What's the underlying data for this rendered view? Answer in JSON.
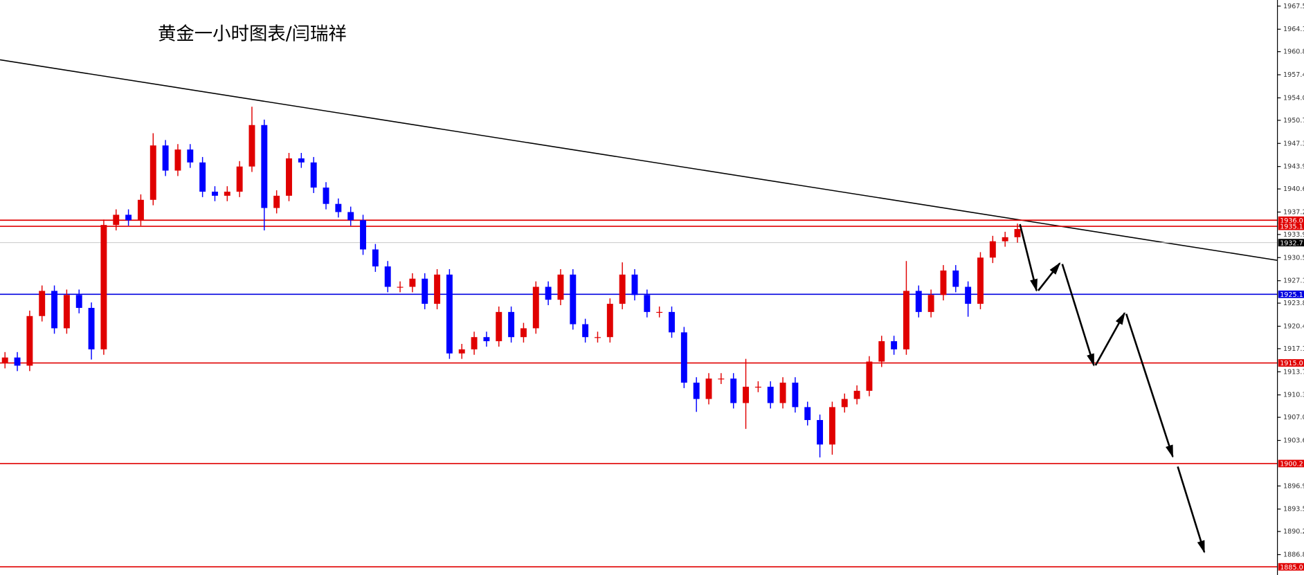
{
  "chart_data": {
    "type": "candlestick",
    "title": "黄金一小时图表/闫瑞祥",
    "up_color": "#e00000",
    "down_color": "#0000ff",
    "ylim": [
      1883.8,
      1968.4
    ],
    "yticks": [
      1967.5,
      1964.1,
      1960.8,
      1957.4,
      {
        "value": 1954.0,
        "label": "1954.0"
      },
      1950.7,
      1947.3,
      1943.9,
      1940.6,
      1937.2,
      1933.9,
      1930.5,
      1927.1,
      1923.8,
      1920.4,
      1917.1,
      1913.7,
      1910.3,
      {
        "value": 1907.0,
        "label": "1907.0"
      },
      1903.6,
      1896.9,
      1893.5,
      1890.2,
      1886.8
    ],
    "levels": [
      {
        "value": 1936.0,
        "label": "1936.0",
        "color": "#e00000"
      },
      {
        "value": 1935.1,
        "color": "#e00000"
      },
      {
        "value": 1932.7,
        "color": "#c0c0c0"
      },
      {
        "value": 1925.1,
        "color": "#0000e0"
      },
      {
        "value": 1915.0,
        "label": "1915.0",
        "color": "#e00000"
      },
      {
        "value": 1900.2,
        "color": "#e00000"
      },
      {
        "value": 1885.0,
        "label": "1885.0",
        "color": "#e00000"
      }
    ],
    "trendline": {
      "start": 1959.6,
      "end": 1930.1,
      "color": "#000000"
    },
    "candles": [
      [
        1915.0,
        1916.6,
        1914.2,
        1915.8
      ],
      [
        1915.8,
        1916.6,
        1913.8,
        1914.6
      ],
      [
        1914.6,
        1922.7,
        1913.8,
        1921.9
      ],
      [
        1921.9,
        1926.4,
        1921.1,
        1925.6
      ],
      [
        1925.6,
        1926.4,
        1919.3,
        1920.1
      ],
      [
        1920.1,
        1925.8,
        1919.3,
        1925.0
      ],
      [
        1925.0,
        1925.8,
        1922.3,
        1923.1
      ],
      [
        1923.1,
        1923.9,
        1915.5,
        1917.0
      ],
      [
        1917.0,
        1936.1,
        1916.2,
        1935.3
      ],
      [
        1935.3,
        1937.6,
        1934.5,
        1936.8
      ],
      [
        1936.8,
        1937.6,
        1935.2,
        1936.0
      ],
      [
        1936.0,
        1939.8,
        1935.2,
        1939.0
      ],
      [
        1939.0,
        1948.8,
        1938.2,
        1947.0
      ],
      [
        1947.0,
        1947.8,
        1942.5,
        1943.3
      ],
      [
        1943.3,
        1947.2,
        1942.5,
        1946.4
      ],
      [
        1946.4,
        1947.2,
        1943.7,
        1944.5
      ],
      [
        1944.5,
        1945.3,
        1939.4,
        1940.2
      ],
      [
        1940.2,
        1941.0,
        1938.8,
        1939.6
      ],
      [
        1939.6,
        1941.0,
        1938.8,
        1940.2
      ],
      [
        1940.2,
        1944.7,
        1939.4,
        1943.9
      ],
      [
        1943.9,
        1952.7,
        1943.1,
        1950.0
      ],
      [
        1950.0,
        1950.8,
        1934.5,
        1937.8
      ],
      [
        1937.8,
        1940.4,
        1937.0,
        1939.6
      ],
      [
        1939.6,
        1945.9,
        1938.8,
        1945.1
      ],
      [
        1945.1,
        1945.9,
        1943.7,
        1944.5
      ],
      [
        1944.5,
        1945.3,
        1940.0,
        1940.8
      ],
      [
        1940.8,
        1941.6,
        1937.6,
        1938.4
      ],
      [
        1938.4,
        1939.2,
        1936.4,
        1937.2
      ],
      [
        1937.2,
        1938.0,
        1935.2,
        1936.0
      ],
      [
        1936.0,
        1936.8,
        1930.9,
        1931.7
      ],
      [
        1931.7,
        1932.5,
        1928.4,
        1929.2
      ],
      [
        1929.2,
        1930.0,
        1925.4,
        1926.2
      ],
      [
        1926.2,
        1927.0,
        1925.4,
        1926.2
      ],
      [
        1926.2,
        1928.2,
        1925.4,
        1927.4
      ],
      [
        1927.4,
        1928.2,
        1922.9,
        1923.7
      ],
      [
        1923.7,
        1928.8,
        1922.9,
        1928.0
      ],
      [
        1928.0,
        1928.8,
        1915.6,
        1916.4
      ],
      [
        1916.4,
        1917.8,
        1915.6,
        1917.0
      ],
      [
        1917.0,
        1919.6,
        1916.2,
        1918.8
      ],
      [
        1918.8,
        1919.6,
        1917.4,
        1918.2
      ],
      [
        1918.2,
        1923.3,
        1917.4,
        1922.5
      ],
      [
        1922.5,
        1923.3,
        1918.0,
        1918.8
      ],
      [
        1918.8,
        1920.9,
        1918.0,
        1920.1
      ],
      [
        1920.1,
        1927.0,
        1919.3,
        1926.2
      ],
      [
        1926.2,
        1927.0,
        1923.5,
        1924.3
      ],
      [
        1924.3,
        1928.8,
        1923.5,
        1928.0
      ],
      [
        1928.0,
        1928.8,
        1919.9,
        1920.7
      ],
      [
        1920.7,
        1921.5,
        1918.0,
        1918.8
      ],
      [
        1918.8,
        1919.6,
        1918.0,
        1918.8
      ],
      [
        1918.8,
        1924.5,
        1918.0,
        1923.7
      ],
      [
        1923.7,
        1929.8,
        1922.9,
        1928.0
      ],
      [
        1928.0,
        1928.8,
        1924.2,
        1925.0
      ],
      [
        1925.0,
        1925.8,
        1921.7,
        1922.5
      ],
      [
        1922.5,
        1923.3,
        1921.7,
        1922.5
      ],
      [
        1922.5,
        1923.3,
        1918.7,
        1919.5
      ],
      [
        1919.5,
        1920.3,
        1911.3,
        1912.1
      ],
      [
        1912.1,
        1912.9,
        1907.8,
        1909.7
      ],
      [
        1909.7,
        1913.5,
        1908.9,
        1912.7
      ],
      [
        1912.7,
        1913.5,
        1911.9,
        1912.7
      ],
      [
        1912.7,
        1913.5,
        1908.3,
        1909.1
      ],
      [
        1909.1,
        1915.6,
        1905.3,
        1911.5
      ],
      [
        1911.5,
        1912.3,
        1910.7,
        1911.5
      ],
      [
        1911.5,
        1912.3,
        1908.3,
        1909.1
      ],
      [
        1909.1,
        1912.9,
        1908.3,
        1912.1
      ],
      [
        1912.1,
        1912.9,
        1907.7,
        1908.5
      ],
      [
        1908.5,
        1909.3,
        1905.8,
        1906.6
      ],
      [
        1906.6,
        1907.4,
        1901.1,
        1903.0
      ],
      [
        1903.0,
        1909.3,
        1901.5,
        1908.5
      ],
      [
        1908.5,
        1910.5,
        1907.7,
        1909.7
      ],
      [
        1909.7,
        1911.7,
        1908.9,
        1910.9
      ],
      [
        1910.9,
        1916.0,
        1910.1,
        1915.2
      ],
      [
        1915.2,
        1919.0,
        1914.4,
        1918.2
      ],
      [
        1918.2,
        1919.0,
        1916.2,
        1917.0
      ],
      [
        1917.0,
        1930.0,
        1916.2,
        1925.6
      ],
      [
        1925.6,
        1926.4,
        1921.7,
        1922.5
      ],
      [
        1922.5,
        1925.8,
        1921.7,
        1925.0
      ],
      [
        1925.0,
        1929.4,
        1924.2,
        1928.6
      ],
      [
        1928.6,
        1929.4,
        1925.4,
        1926.2
      ],
      [
        1926.2,
        1927.0,
        1921.8,
        1923.7
      ],
      [
        1923.7,
        1931.3,
        1922.9,
        1930.5
      ],
      [
        1930.5,
        1933.7,
        1929.7,
        1932.9
      ],
      [
        1932.9,
        1934.3,
        1932.1,
        1933.5
      ],
      [
        1933.5,
        1935.5,
        1932.7,
        1934.7
      ]
    ]
  }
}
